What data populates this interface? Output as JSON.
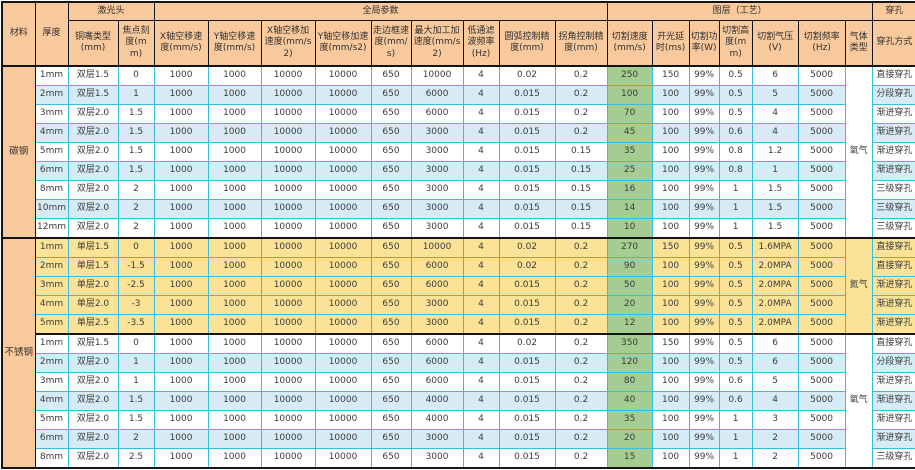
{
  "palette": {
    "header_bg": "#f8c99c",
    "row_alt_blue": "#d7ebf4",
    "nitrogen_yellow": "#fae396",
    "speed_green": "#a5cd92",
    "gridline_cyan": "#36bedc",
    "border_black": "#141414"
  },
  "table": {
    "group_headers": {
      "material": "材料",
      "thickness": "厚度",
      "laser_head": "激光头",
      "global_params": "全局参数",
      "layer": "图层（工艺）",
      "pierce": "穿孔"
    },
    "columns": [
      "铜嘴类型(mm)",
      "焦点刻度(mm)",
      "X轴空移速度(mm/s)",
      "Y轴空移速度(mm/s)",
      "X轴空移加速度(mm/s2)",
      "Y轴空移加速度(mm/s2)",
      "走边框速度(mm/s)",
      "最大加工加速度(mm/s2)",
      "低通滤波频率(Hz)",
      "圆弧控制精度(mm)",
      "拐角控制精度(mm)",
      "切割速度(mm/s)",
      "开光延时(ms)",
      "切割功率(W)",
      "切割高度(mm)",
      "切割气压(V)",
      "切割频率(Hz)",
      "气体类型",
      "穿孔方式"
    ],
    "column_keys": [
      "thickness",
      "nozzle-type",
      "focus",
      "x-move-speed",
      "y-move-speed",
      "x-move-acc",
      "y-move-acc",
      "frame-speed",
      "max-work-acc",
      "lowpass-freq",
      "arc-precision",
      "corner-precision",
      "cut-speed",
      "laser-delay",
      "cut-power",
      "cut-height",
      "cut-pressure",
      "cut-freq",
      "pierce-method"
    ],
    "sections": [
      {
        "material": "碳钢",
        "groups": [
          {
            "gas": "氧气",
            "style": "normal",
            "rows": [
              [
                "1mm",
                "双层1.5",
                "0",
                "1000",
                "1000",
                "10000",
                "10000",
                "650",
                "10000",
                "4",
                "0.02",
                "0.2",
                "250",
                "150",
                "99%",
                "0.5",
                "6",
                "5000",
                "直接穿孔"
              ],
              [
                "2mm",
                "双层1.5",
                "1",
                "1000",
                "1000",
                "10000",
                "10000",
                "650",
                "6000",
                "4",
                "0.015",
                "0.2",
                "100",
                "100",
                "99%",
                "0.5",
                "5",
                "5000",
                "分段穿孔"
              ],
              [
                "3mm",
                "双层2.0",
                "1.5",
                "1000",
                "1000",
                "10000",
                "10000",
                "650",
                "6000",
                "4",
                "0.015",
                "0.2",
                "70",
                "100",
                "99%",
                "0.5",
                "4",
                "5000",
                "渐进穿孔"
              ],
              [
                "4mm",
                "双层2.0",
                "1.5",
                "1000",
                "1000",
                "10000",
                "10000",
                "650",
                "3000",
                "4",
                "0.015",
                "0.2",
                "45",
                "100",
                "99%",
                "0.6",
                "4",
                "5000",
                "渐进穿孔"
              ],
              [
                "5mm",
                "双层2.0",
                "1.5",
                "1000",
                "1000",
                "10000",
                "10000",
                "650",
                "3000",
                "4",
                "0.015",
                "0.15",
                "35",
                "100",
                "99%",
                "0.8",
                "1.2",
                "5000",
                "渐进穿孔"
              ],
              [
                "6mm",
                "双层2.0",
                "1.5",
                "1000",
                "1000",
                "10000",
                "10000",
                "650",
                "3000",
                "4",
                "0.015",
                "0.15",
                "25",
                "100",
                "99%",
                "0.8",
                "1",
                "5000",
                "渐进穿孔"
              ],
              [
                "8mm",
                "双层2.0",
                "2",
                "1000",
                "1000",
                "10000",
                "10000",
                "650",
                "3000",
                "4",
                "0.015",
                "0.15",
                "16",
                "100",
                "99%",
                "1",
                "1.5",
                "5000",
                "三级穿孔"
              ],
              [
                "10mm",
                "双层2.0",
                "2",
                "1000",
                "1000",
                "10000",
                "10000",
                "650",
                "3000",
                "4",
                "0.015",
                "0.15",
                "14",
                "100",
                "99%",
                "1",
                "1.5",
                "5000",
                "三级穿孔"
              ],
              [
                "12mm",
                "双层2.0",
                "2",
                "1000",
                "1000",
                "10000",
                "10000",
                "650",
                "3000",
                "4",
                "0.015",
                "0.15",
                "10",
                "100",
                "99%",
                "1",
                "1.5",
                "5000",
                "三级穿孔"
              ]
            ]
          }
        ]
      },
      {
        "material": "不锈钢",
        "groups": [
          {
            "gas": "氮气",
            "style": "yellow",
            "rows": [
              [
                "1mm",
                "单层1.5",
                "0",
                "1000",
                "1000",
                "10000",
                "10000",
                "650",
                "10000",
                "4",
                "0.02",
                "0.2",
                "270",
                "150",
                "99%",
                "0.5",
                "1.6MPA",
                "5000",
                "直接穿孔"
              ],
              [
                "2mm",
                "单层1.5",
                "-1.5",
                "1000",
                "1000",
                "10000",
                "10000",
                "650",
                "6000",
                "4",
                "0.02",
                "0.2",
                "90",
                "100",
                "99%",
                "0.5",
                "2.0MPA",
                "5000",
                "直接穿孔"
              ],
              [
                "3mm",
                "单层2.0",
                "-2.5",
                "1000",
                "1000",
                "10000",
                "10000",
                "650",
                "6000",
                "4",
                "0.015",
                "0.2",
                "50",
                "100",
                "99%",
                "0.5",
                "2.0MPA",
                "5000",
                "渐进穿孔"
              ],
              [
                "4mm",
                "单层2.0",
                "-3",
                "1000",
                "1000",
                "10000",
                "10000",
                "650",
                "3000",
                "4",
                "0.015",
                "0.2",
                "20",
                "100",
                "99%",
                "0.5",
                "2.0MPA",
                "5000",
                "渐进穿孔"
              ],
              [
                "5mm",
                "单层2.5",
                "-3.5",
                "1000",
                "1000",
                "10000",
                "10000",
                "650",
                "3000",
                "4",
                "0.015",
                "0.2",
                "12",
                "100",
                "99%",
                "0.5",
                "2.0MPA",
                "5000",
                "渐进穿孔"
              ]
            ]
          },
          {
            "gas": "氧气",
            "style": "normal",
            "rows": [
              [
                "1mm",
                "双层1.5",
                "0",
                "1000",
                "1000",
                "10000",
                "10000",
                "650",
                "6000",
                "4",
                "0.02",
                "0.2",
                "350",
                "150",
                "99%",
                "0.5",
                "6",
                "5000",
                "直接穿孔"
              ],
              [
                "2mm",
                "双层2.0",
                "1",
                "1000",
                "1000",
                "10000",
                "10000",
                "650",
                "6000",
                "4",
                "0.015",
                "0.2",
                "120",
                "100",
                "99%",
                "0.5",
                "6",
                "5000",
                "分段穿孔"
              ],
              [
                "3mm",
                "双层2.0",
                "1",
                "1000",
                "1000",
                "10000",
                "10000",
                "650",
                "6000",
                "4",
                "0.015",
                "0.2",
                "80",
                "100",
                "99%",
                "0.6",
                "5",
                "5000",
                "渐进穿孔"
              ],
              [
                "4mm",
                "双层2.0",
                "1.5",
                "1000",
                "1000",
                "10000",
                "10000",
                "650",
                "4000",
                "4",
                "0.015",
                "0.2",
                "40",
                "100",
                "99%",
                "0.6",
                "4",
                "5000",
                "渐进穿孔"
              ],
              [
                "5mm",
                "双层2.0",
                "1.5",
                "1000",
                "1000",
                "10000",
                "10000",
                "650",
                "4000",
                "4",
                "0.015",
                "0.2",
                "35",
                "100",
                "99%",
                "1",
                "3",
                "5000",
                "渐进穿孔"
              ],
              [
                "6mm",
                "双层2.0",
                "2",
                "1000",
                "1000",
                "10000",
                "10000",
                "650",
                "3000",
                "4",
                "0.015",
                "0.2",
                "20",
                "100",
                "99%",
                "1",
                "2",
                "5000",
                "渐进穿孔"
              ],
              [
                "8mm",
                "双层2.0",
                "2.5",
                "1000",
                "1000",
                "10000",
                "10000",
                "650",
                "3000",
                "4",
                "0.015",
                "0.2",
                "15",
                "100",
                "99%",
                "1",
                "2",
                "5000",
                "三级穿孔"
              ]
            ]
          }
        ]
      }
    ]
  }
}
